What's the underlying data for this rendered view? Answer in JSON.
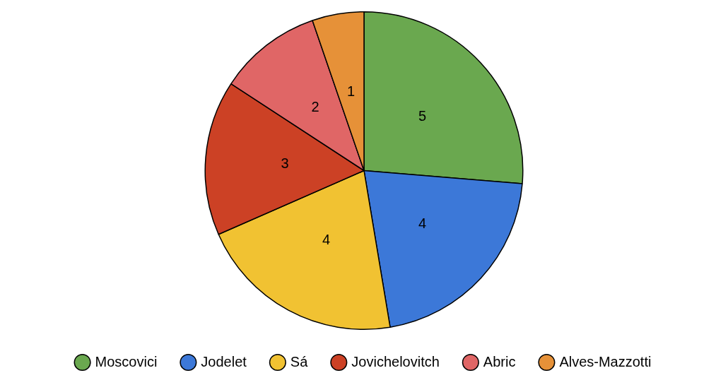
{
  "chart_data": {
    "type": "pie",
    "categories": [
      "Moscovici",
      "Jodelet",
      "Sá",
      "Jovichelovitch",
      "Abric",
      "Alves-Mazzotti"
    ],
    "values": [
      5,
      4,
      4,
      3,
      2,
      1
    ],
    "colors": [
      "#6aa84f",
      "#3c78d8",
      "#f1c232",
      "#cc4125",
      "#e06666",
      "#e69138"
    ],
    "data_labels": true,
    "legend": "bottom"
  }
}
